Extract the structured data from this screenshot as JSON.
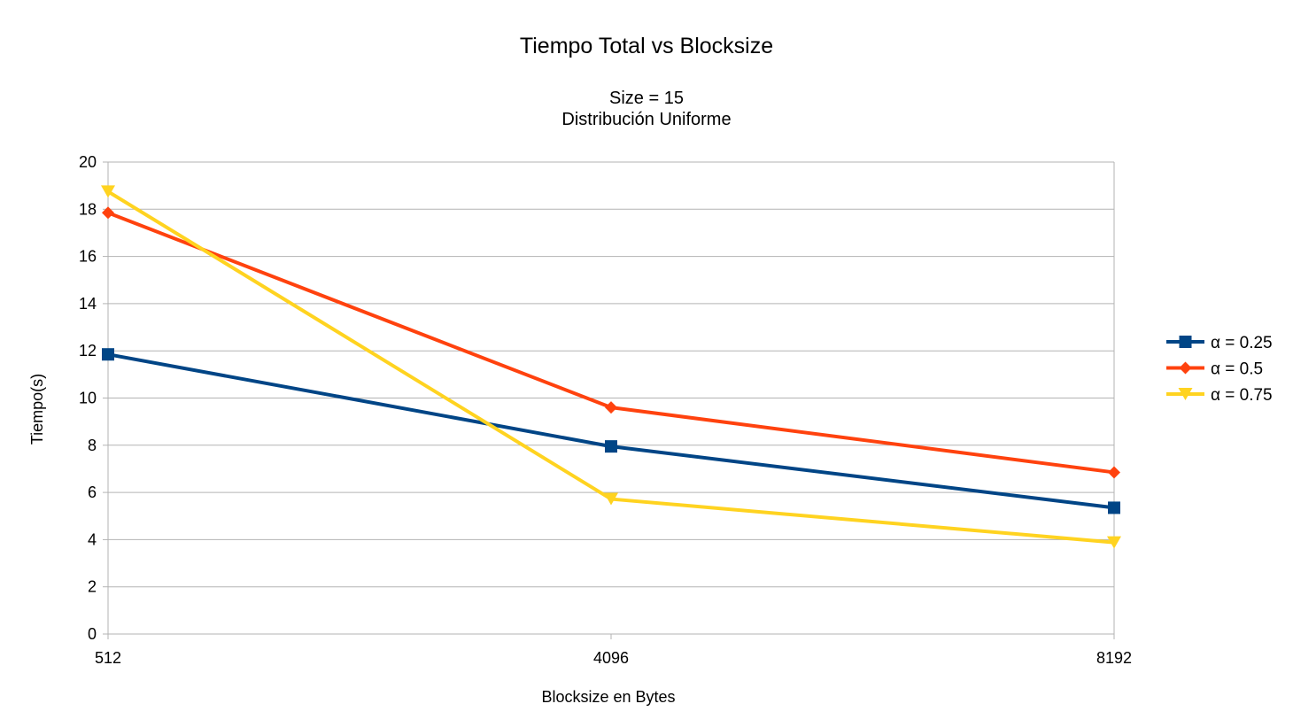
{
  "chart_data": {
    "type": "line",
    "title": "Tiempo Total vs Blocksize",
    "subtitle_lines": [
      "Size = 15",
      "Distribución Uniforme"
    ],
    "xlabel": "Blocksize en Bytes",
    "ylabel": "Tiempo(s)",
    "categories": [
      "512",
      "4096",
      "8192"
    ],
    "ylim": [
      0,
      20
    ],
    "yticks": [
      "0",
      "2",
      "4",
      "6",
      "8",
      "10",
      "12",
      "14",
      "16",
      "18",
      "20"
    ],
    "grid": true,
    "legend_position": "right",
    "series": [
      {
        "name": "α = 0.25",
        "values": [
          11.85,
          7.95,
          5.35
        ],
        "color": "#004586",
        "marker": "square"
      },
      {
        "name": "α = 0.5",
        "values": [
          17.85,
          9.6,
          6.85
        ],
        "color": "#ff420e",
        "marker": "diamond"
      },
      {
        "name": "α = 0.75",
        "values": [
          18.75,
          5.72,
          3.88
        ],
        "color": "#ffd320",
        "marker": "triangle-down"
      }
    ]
  }
}
